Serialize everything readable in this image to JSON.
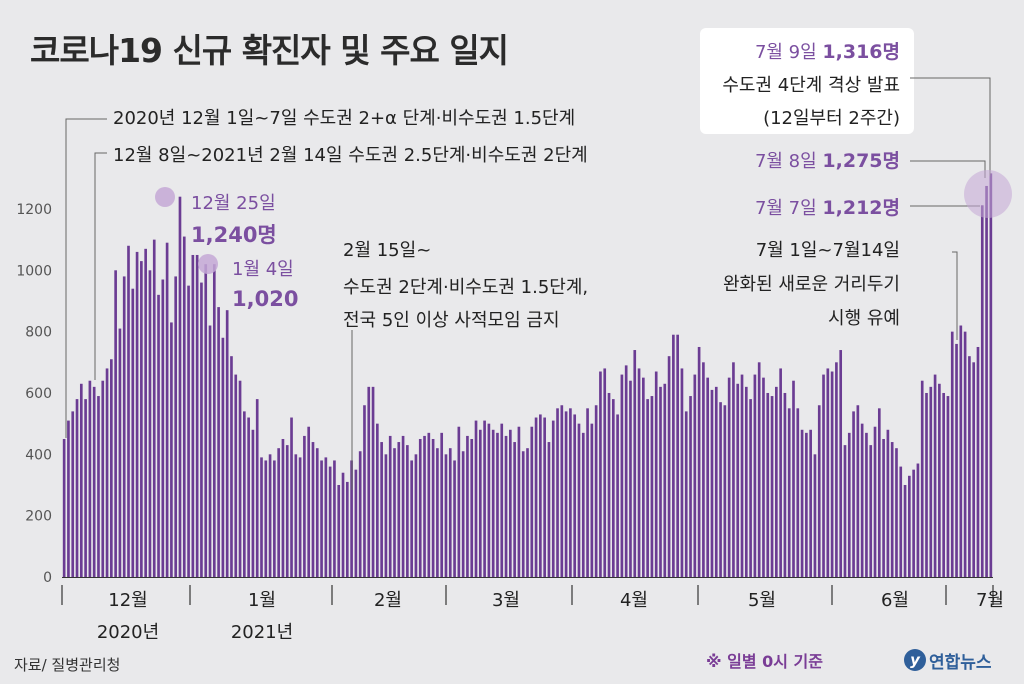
{
  "title": "코로나19 신규 확진자 및 주요 일지",
  "source": "자료/ 질병관리청",
  "note": "※ 일별 0시 기준",
  "logo": {
    "mark": "y",
    "name": "연합뉴스"
  },
  "colors": {
    "bar": "#6b3c93",
    "accent": "#7b4fa0",
    "highlight_circle": "#c4a8d6",
    "background": "#e9e9eb",
    "text": "#222222"
  },
  "annotations": {
    "policy_line1": "2020년 12월 1일~7일 수도권 2+α 단계·비수도권 1.5단계",
    "policy_line2": "12월 8일~2021년 2월 14일 수도권 2.5단계·비수도권 2단계",
    "dec25_date": "12월 25일",
    "dec25_value": "1,240명",
    "jan4_date": "1월 4일",
    "jan4_value": "1,020",
    "feb15_line1": "2월 15일~",
    "feb15_line2": "수도권 2단계·비수도권 1.5단계,",
    "feb15_line3": "전국 5인 이상 사적모임 금지",
    "jul9_date": "7월 9일 ",
    "jul9_value": "1,316명",
    "jul9_line2": "수도권 4단계 격상 발표",
    "jul9_line3": "(12일부터 2주간)",
    "jul8_date": "7월 8일 ",
    "jul8_value": "1,275명",
    "jul7_date": "7월 7일 ",
    "jul7_value": "1,212명",
    "jul1_line1": "7월 1일~7월14일",
    "jul1_line2": "완화된 새로운 거리두기",
    "jul1_line3": "시행 유예"
  },
  "chart_data": {
    "type": "bar",
    "title": "코로나19 신규 확진자 및 주요 일지",
    "xlabel": "",
    "ylabel": "",
    "ylim": [
      0,
      1400
    ],
    "yticks": [
      0,
      200,
      400,
      600,
      800,
      1000,
      1200
    ],
    "grid": false,
    "month_labels": [
      "12월",
      "1월",
      "2월",
      "3월",
      "4월",
      "5월",
      "6월",
      "7월"
    ],
    "year_labels": [
      "2020년",
      "2021년"
    ],
    "first_date": "2020-11-20",
    "last_date": "2021-07-09",
    "values": [
      450,
      510,
      540,
      580,
      630,
      580,
      640,
      620,
      590,
      640,
      680,
      710,
      1000,
      810,
      980,
      1080,
      940,
      1060,
      1030,
      1070,
      1000,
      1100,
      920,
      970,
      1090,
      830,
      980,
      1240,
      1110,
      950,
      1050,
      1050,
      960,
      1020,
      820,
      1020,
      880,
      780,
      870,
      720,
      660,
      640,
      540,
      520,
      480,
      580,
      390,
      380,
      400,
      380,
      420,
      450,
      430,
      520,
      400,
      390,
      460,
      490,
      440,
      420,
      380,
      390,
      360,
      380,
      300,
      340,
      310,
      380,
      350,
      410,
      560,
      620,
      620,
      500,
      440,
      400,
      460,
      420,
      440,
      460,
      430,
      380,
      400,
      450,
      460,
      470,
      450,
      420,
      470,
      400,
      420,
      380,
      490,
      410,
      460,
      450,
      510,
      480,
      510,
      500,
      480,
      470,
      500,
      460,
      480,
      440,
      490,
      410,
      420,
      490,
      520,
      530,
      520,
      440,
      510,
      550,
      560,
      540,
      550,
      530,
      500,
      470,
      550,
      500,
      560,
      670,
      680,
      600,
      580,
      530,
      660,
      690,
      640,
      740,
      680,
      650,
      580,
      590,
      670,
      620,
      630,
      720,
      790,
      790,
      680,
      540,
      590,
      660,
      750,
      700,
      650,
      610,
      620,
      570,
      560,
      650,
      700,
      630,
      660,
      620,
      580,
      660,
      700,
      650,
      600,
      590,
      620,
      680,
      600,
      550,
      640,
      550,
      480,
      470,
      480,
      400,
      560,
      660,
      680,
      670,
      700,
      740,
      430,
      470,
      540,
      560,
      500,
      470,
      430,
      490,
      550,
      450,
      480,
      440,
      420,
      360,
      300,
      330,
      350,
      370,
      640,
      600,
      620,
      660,
      630,
      600,
      590,
      800,
      760,
      820,
      800,
      720,
      700,
      750,
      1212,
      1275,
      1316
    ]
  }
}
